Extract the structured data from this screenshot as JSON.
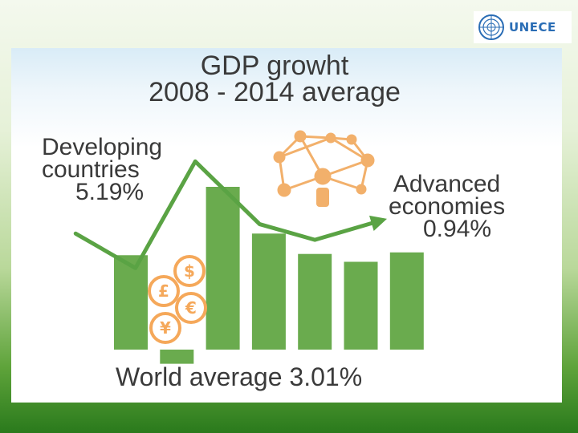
{
  "logo": {
    "text": "UNECE"
  },
  "title": {
    "line1": "GDP growht",
    "line2": "2008 - 2014 average"
  },
  "labels": {
    "developing": {
      "line1": "Developing",
      "line2": "countries",
      "value": "5.19%"
    },
    "advanced": {
      "line1": "Advanced",
      "line2": "economies",
      "value": "0.94%"
    },
    "world": "World average 3.01%"
  },
  "chart_data": {
    "type": "bar",
    "title": "GDP growht 2008 - 2014 average",
    "xlabel": "",
    "ylabel": "",
    "categories": [
      "",
      "",
      "",
      "",
      "",
      "",
      ""
    ],
    "values": [
      3.01,
      -0.4,
      5.19,
      3.7,
      3.05,
      2.8,
      3.1
    ],
    "ylim": [
      -1,
      6
    ],
    "grid": false,
    "line_series": {
      "x": [
        -1.2,
        0.1,
        1.4,
        2.8,
        4.0,
        5.4
      ],
      "values": [
        3.7,
        2.6,
        6.0,
        4.0,
        3.5,
        4.1
      ]
    },
    "annotations": [
      "Developing countries 5.19%",
      "Advanced economies 0.94%",
      "World average 3.01%"
    ],
    "colors": {
      "bar": "#6aab4e",
      "line": "#5aa344",
      "icon": "#f2b06b",
      "coin": "#f5a85a"
    }
  }
}
